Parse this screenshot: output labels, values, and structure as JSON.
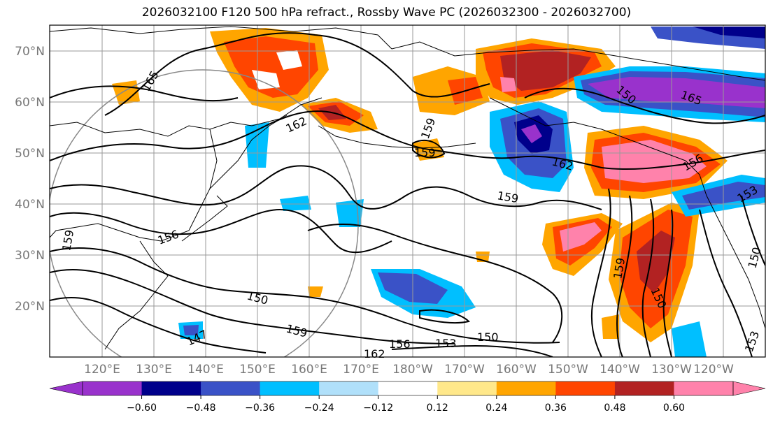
{
  "title": "2026032100 F120 500 hPa refract., Rossby Wave PC (2026032300 - 2026032700)",
  "lat_labels": [
    "70°N",
    "60°N",
    "50°N",
    "40°N",
    "30°N",
    "20°N"
  ],
  "lon_labels": [
    "120°E",
    "130°E",
    "140°E",
    "150°E",
    "160°E",
    "170°E",
    "180°W",
    "170°W",
    "160°W",
    "150°W",
    "140°W",
    "130°W",
    "120°W"
  ],
  "contour_labels": [
    "165",
    "162",
    "159",
    "159",
    "162",
    "159",
    "165",
    "156",
    "153",
    "159",
    "156",
    "150",
    "147",
    "159",
    "156",
    "153",
    "150",
    "162",
    "150",
    "159",
    "150",
    "153",
    "150"
  ],
  "colorbar": {
    "colors": [
      "#9932cc",
      "#00008b",
      "#3a52c7",
      "#00bfff",
      "#b0e0fa",
      "#ffffff",
      "#ffe88a",
      "#ffa500",
      "#ff4500",
      "#b22222",
      "#ff82ab"
    ],
    "tick_labels": [
      "−0.60",
      "−0.48",
      "−0.36",
      "−0.24",
      "−0.12",
      "0.12",
      "0.24",
      "0.36",
      "0.48",
      "0.60"
    ]
  }
}
